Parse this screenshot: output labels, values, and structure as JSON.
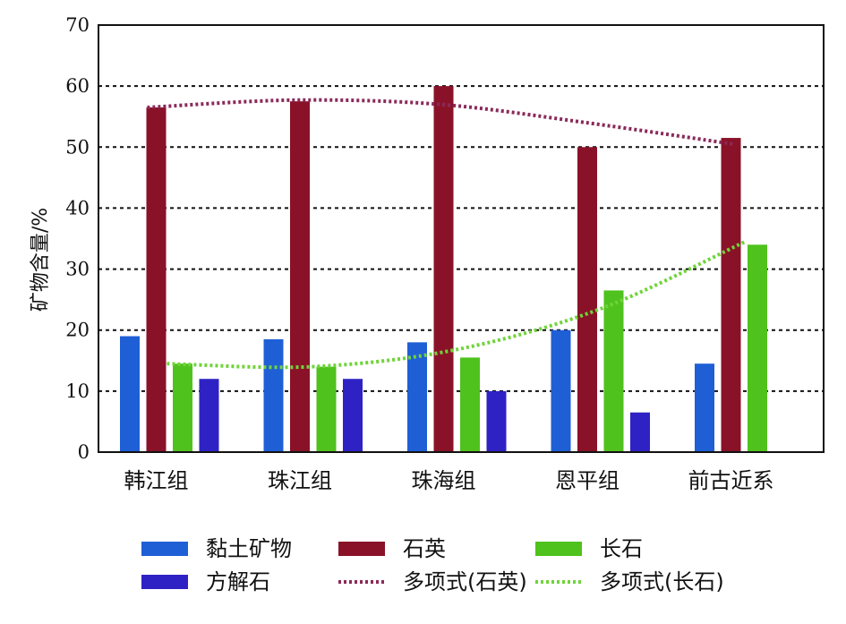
{
  "chart_data": {
    "type": "bar",
    "ylabel": "矿物含量/%",
    "ylim": [
      0,
      70
    ],
    "yticks": [
      0,
      10,
      20,
      30,
      40,
      50,
      60,
      70
    ],
    "grid": "horizontal dotted",
    "categories": [
      "韩江组",
      "珠江组",
      "珠海组",
      "恩平组",
      "前古近系"
    ],
    "series": [
      {
        "name": "黏土矿物",
        "color": "#1f5fd6",
        "values": [
          19,
          18.5,
          18,
          20,
          14.5
        ]
      },
      {
        "name": "石英",
        "color": "#8a1228",
        "values": [
          56.5,
          57.5,
          60,
          50,
          51.5
        ]
      },
      {
        "name": "长石",
        "color": "#4fc21d",
        "values": [
          14.5,
          14,
          15.5,
          26.5,
          34
        ]
      },
      {
        "name": "方解石",
        "color": "#2f22c4",
        "values": [
          12,
          12,
          10,
          6.5,
          null
        ]
      }
    ],
    "trendlines": [
      {
        "name": "多项式(石英)",
        "color": "#8a2a5a",
        "values": [
          56.5,
          57.7,
          57.0,
          54.0,
          50.5
        ]
      },
      {
        "name": "多项式(长石)",
        "color": "#6fd43a",
        "values": [
          14.5,
          14.0,
          16.8,
          23.5,
          34.5
        ]
      }
    ],
    "legend": {
      "placement": "bottom",
      "entries": [
        {
          "name": "黏土矿物",
          "kind": "bar",
          "color": "#1f5fd6"
        },
        {
          "name": "石英",
          "kind": "bar",
          "color": "#8a1228"
        },
        {
          "name": "长石",
          "kind": "bar",
          "color": "#4fc21d"
        },
        {
          "name": "方解石",
          "kind": "bar",
          "color": "#2f22c4"
        },
        {
          "name": "多项式(石英)",
          "kind": "line",
          "color": "#8a2a5a"
        },
        {
          "name": "多项式(长石)",
          "kind": "line",
          "color": "#6fd43a"
        }
      ]
    }
  }
}
